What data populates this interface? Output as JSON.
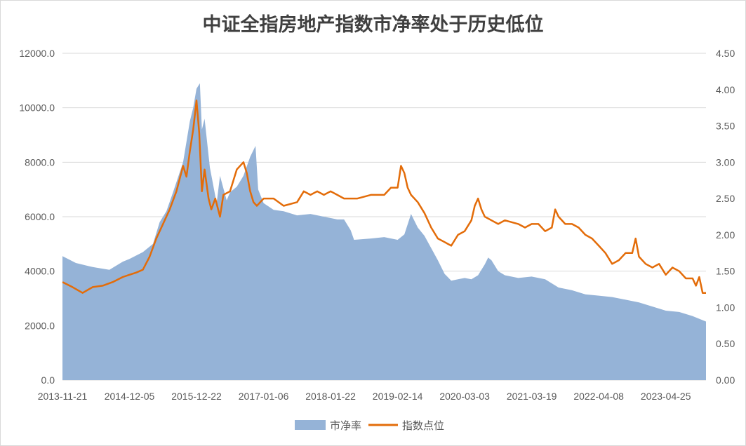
{
  "chart_data": {
    "type": "area",
    "title": "中证全指房地产指数市净率处于历史低位",
    "x_tick_labels": [
      "2013-11-21",
      "2014-12-05",
      "2015-12-22",
      "2017-01-06",
      "2018-01-22",
      "2019-02-14",
      "2020-03-03",
      "2021-03-19",
      "2022-04-08",
      "2023-04-25"
    ],
    "y_left": {
      "lim": [
        0,
        12000
      ],
      "ticks": [
        "0.0",
        "2000.0",
        "4000.0",
        "6000.0",
        "8000.0",
        "10000.0",
        "12000.0"
      ]
    },
    "y_right": {
      "lim": [
        0,
        4.5
      ],
      "ticks": [
        "0.00",
        "0.50",
        "1.00",
        "1.50",
        "2.00",
        "2.50",
        "3.00",
        "3.50",
        "4.00",
        "4.50"
      ]
    },
    "grid": true,
    "legend_position": "bottom",
    "x_range": [
      0,
      9.6
    ],
    "series": [
      {
        "name": "市净率",
        "type": "area",
        "axis": "left",
        "color": "#95b3d7",
        "points": [
          [
            0,
            4550
          ],
          [
            0.2,
            4300
          ],
          [
            0.45,
            4150
          ],
          [
            0.7,
            4050
          ],
          [
            0.9,
            4350
          ],
          [
            1.0,
            4450
          ],
          [
            1.2,
            4700
          ],
          [
            1.35,
            5000
          ],
          [
            1.45,
            5800
          ],
          [
            1.55,
            6200
          ],
          [
            1.65,
            6900
          ],
          [
            1.8,
            8000
          ],
          [
            1.9,
            9500
          ],
          [
            1.95,
            10000
          ],
          [
            2.0,
            10700
          ],
          [
            2.05,
            10900
          ],
          [
            2.08,
            9200
          ],
          [
            2.12,
            9600
          ],
          [
            2.2,
            7800
          ],
          [
            2.3,
            6500
          ],
          [
            2.35,
            7500
          ],
          [
            2.45,
            6600
          ],
          [
            2.5,
            6900
          ],
          [
            2.6,
            7100
          ],
          [
            2.7,
            7500
          ],
          [
            2.8,
            8200
          ],
          [
            2.88,
            8600
          ],
          [
            2.92,
            7000
          ],
          [
            3.0,
            6500
          ],
          [
            3.15,
            6250
          ],
          [
            3.3,
            6200
          ],
          [
            3.5,
            6050
          ],
          [
            3.7,
            6100
          ],
          [
            3.9,
            6000
          ],
          [
            4.1,
            5900
          ],
          [
            4.2,
            5900
          ],
          [
            4.3,
            5500
          ],
          [
            4.35,
            5150
          ],
          [
            4.6,
            5200
          ],
          [
            4.8,
            5250
          ],
          [
            5.0,
            5150
          ],
          [
            5.1,
            5350
          ],
          [
            5.2,
            6100
          ],
          [
            5.3,
            5600
          ],
          [
            5.4,
            5300
          ],
          [
            5.5,
            4850
          ],
          [
            5.6,
            4400
          ],
          [
            5.7,
            3900
          ],
          [
            5.8,
            3650
          ],
          [
            5.9,
            3700
          ],
          [
            6.0,
            3750
          ],
          [
            6.1,
            3700
          ],
          [
            6.2,
            3850
          ],
          [
            6.3,
            4250
          ],
          [
            6.35,
            4500
          ],
          [
            6.4,
            4400
          ],
          [
            6.5,
            4000
          ],
          [
            6.6,
            3850
          ],
          [
            6.8,
            3750
          ],
          [
            7.0,
            3800
          ],
          [
            7.2,
            3700
          ],
          [
            7.4,
            3400
          ],
          [
            7.6,
            3300
          ],
          [
            7.8,
            3150
          ],
          [
            8.0,
            3100
          ],
          [
            8.2,
            3050
          ],
          [
            8.4,
            2950
          ],
          [
            8.6,
            2850
          ],
          [
            8.8,
            2700
          ],
          [
            9.0,
            2550
          ],
          [
            9.2,
            2500
          ],
          [
            9.4,
            2350
          ],
          [
            9.5,
            2250
          ],
          [
            9.6,
            2150
          ]
        ]
      },
      {
        "name": "指数点位",
        "type": "line",
        "axis": "right",
        "color": "#e36c09",
        "points": [
          [
            0,
            1.35
          ],
          [
            0.15,
            1.28
          ],
          [
            0.3,
            1.2
          ],
          [
            0.45,
            1.28
          ],
          [
            0.6,
            1.3
          ],
          [
            0.75,
            1.35
          ],
          [
            0.9,
            1.42
          ],
          [
            1.0,
            1.45
          ],
          [
            1.1,
            1.48
          ],
          [
            1.2,
            1.52
          ],
          [
            1.3,
            1.7
          ],
          [
            1.4,
            1.95
          ],
          [
            1.5,
            2.15
          ],
          [
            1.6,
            2.35
          ],
          [
            1.7,
            2.6
          ],
          [
            1.8,
            2.95
          ],
          [
            1.85,
            2.8
          ],
          [
            1.9,
            3.15
          ],
          [
            1.95,
            3.45
          ],
          [
            2.0,
            3.85
          ],
          [
            2.04,
            3.4
          ],
          [
            2.08,
            2.6
          ],
          [
            2.12,
            2.9
          ],
          [
            2.18,
            2.5
          ],
          [
            2.22,
            2.35
          ],
          [
            2.28,
            2.5
          ],
          [
            2.35,
            2.25
          ],
          [
            2.4,
            2.55
          ],
          [
            2.5,
            2.6
          ],
          [
            2.6,
            2.9
          ],
          [
            2.7,
            3.0
          ],
          [
            2.75,
            2.85
          ],
          [
            2.8,
            2.6
          ],
          [
            2.85,
            2.45
          ],
          [
            2.9,
            2.4
          ],
          [
            3.0,
            2.5
          ],
          [
            3.15,
            2.5
          ],
          [
            3.3,
            2.4
          ],
          [
            3.5,
            2.45
          ],
          [
            3.6,
            2.6
          ],
          [
            3.7,
            2.55
          ],
          [
            3.8,
            2.6
          ],
          [
            3.9,
            2.55
          ],
          [
            4.0,
            2.6
          ],
          [
            4.1,
            2.55
          ],
          [
            4.2,
            2.5
          ],
          [
            4.4,
            2.5
          ],
          [
            4.6,
            2.55
          ],
          [
            4.8,
            2.55
          ],
          [
            4.9,
            2.65
          ],
          [
            5.0,
            2.65
          ],
          [
            5.05,
            2.95
          ],
          [
            5.1,
            2.85
          ],
          [
            5.15,
            2.65
          ],
          [
            5.2,
            2.55
          ],
          [
            5.3,
            2.45
          ],
          [
            5.4,
            2.3
          ],
          [
            5.5,
            2.1
          ],
          [
            5.6,
            1.95
          ],
          [
            5.7,
            1.9
          ],
          [
            5.8,
            1.85
          ],
          [
            5.9,
            2.0
          ],
          [
            6.0,
            2.05
          ],
          [
            6.1,
            2.2
          ],
          [
            6.15,
            2.4
          ],
          [
            6.2,
            2.5
          ],
          [
            6.25,
            2.35
          ],
          [
            6.3,
            2.25
          ],
          [
            6.4,
            2.2
          ],
          [
            6.5,
            2.15
          ],
          [
            6.6,
            2.2
          ],
          [
            6.8,
            2.15
          ],
          [
            6.9,
            2.1
          ],
          [
            7.0,
            2.15
          ],
          [
            7.1,
            2.15
          ],
          [
            7.2,
            2.05
          ],
          [
            7.3,
            2.1
          ],
          [
            7.35,
            2.35
          ],
          [
            7.4,
            2.25
          ],
          [
            7.5,
            2.15
          ],
          [
            7.6,
            2.15
          ],
          [
            7.7,
            2.1
          ],
          [
            7.8,
            2.0
          ],
          [
            7.9,
            1.95
          ],
          [
            8.0,
            1.85
          ],
          [
            8.1,
            1.75
          ],
          [
            8.2,
            1.6
          ],
          [
            8.3,
            1.65
          ],
          [
            8.4,
            1.75
          ],
          [
            8.5,
            1.75
          ],
          [
            8.55,
            1.95
          ],
          [
            8.6,
            1.7
          ],
          [
            8.7,
            1.6
          ],
          [
            8.8,
            1.55
          ],
          [
            8.9,
            1.6
          ],
          [
            9.0,
            1.45
          ],
          [
            9.1,
            1.55
          ],
          [
            9.2,
            1.5
          ],
          [
            9.3,
            1.4
          ],
          [
            9.4,
            1.4
          ],
          [
            9.45,
            1.3
          ],
          [
            9.5,
            1.42
          ],
          [
            9.55,
            1.2
          ],
          [
            9.6,
            1.2
          ]
        ]
      }
    ]
  }
}
